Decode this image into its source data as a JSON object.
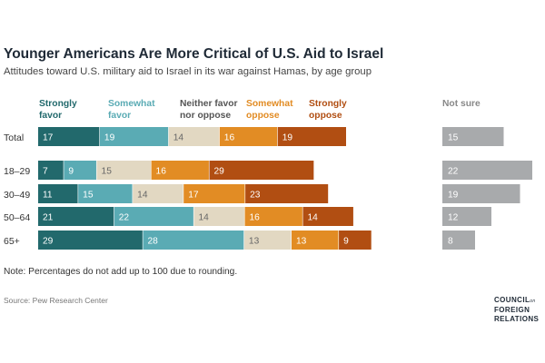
{
  "title": "Younger Americans Are More Critical of U.S. Aid to Israel",
  "subtitle": "Attitudes toward U.S. military aid to Israel in its war against Hamas, by age group",
  "note": "Note: Percentages do not add up to 100 due to rounding.",
  "source": "Source: Pew Research Center",
  "logo": {
    "line1": "COUNCIL",
    "on": "on",
    "line2": "FOREIGN",
    "line3": "RELATIONS"
  },
  "chart_data": {
    "type": "bar",
    "orientation": "horizontal",
    "stacked": true,
    "categories": [
      "Total",
      "18–29",
      "30–49",
      "50–64",
      "65+"
    ],
    "series": [
      {
        "name": "Strongly favor",
        "values": [
          17,
          7,
          11,
          21,
          29
        ],
        "color": "#22696c"
      },
      {
        "name": "Somewhat favor",
        "values": [
          19,
          9,
          15,
          22,
          28
        ],
        "color": "#5aabb4"
      },
      {
        "name": "Neither favor nor oppose",
        "values": [
          14,
          15,
          14,
          14,
          13
        ],
        "color": "#e2d8c2"
      },
      {
        "name": "Somewhat oppose",
        "values": [
          16,
          16,
          17,
          16,
          13
        ],
        "color": "#e28c24"
      },
      {
        "name": "Strongly oppose",
        "values": [
          19,
          29,
          23,
          14,
          9
        ],
        "color": "#b14e12"
      }
    ],
    "not_sure": {
      "name": "Not sure",
      "values": [
        15,
        22,
        19,
        12,
        8
      ],
      "color": "#a8aaac"
    },
    "legend": [
      {
        "line1": "Strongly",
        "line2": "favor",
        "color": "#22696c"
      },
      {
        "line1": "Somewhat",
        "line2": "favor",
        "color": "#5aabb4"
      },
      {
        "line1": "Neither favor",
        "line2": "nor oppose",
        "color": "#555555"
      },
      {
        "line1": "Somewhat",
        "line2": "oppose",
        "color": "#e28c24"
      },
      {
        "line1": "Strongly",
        "line2": "oppose",
        "color": "#b14e12"
      },
      {
        "line1": "Not sure",
        "line2": "",
        "color": "#888888"
      }
    ],
    "label_colors": {
      "dark": "#ffffff",
      "light": "#666666",
      "gray": "#ffffff"
    }
  }
}
